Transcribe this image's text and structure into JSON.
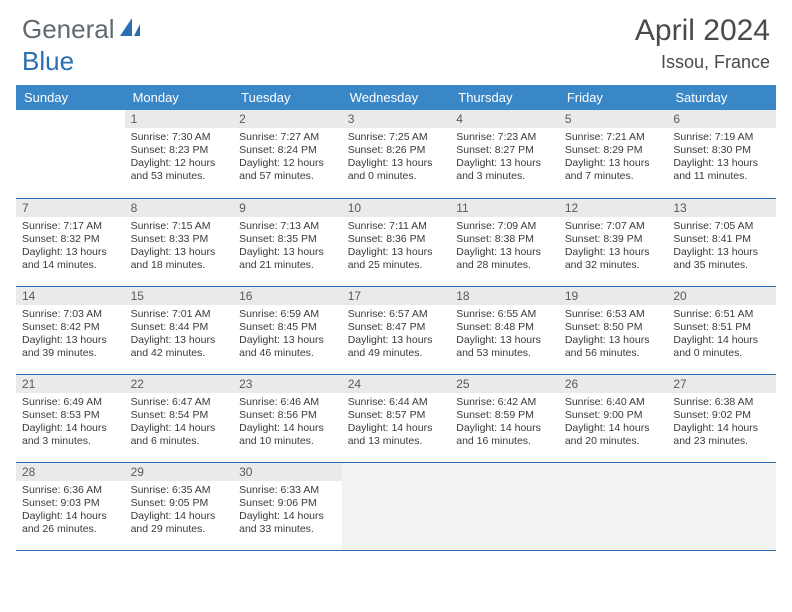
{
  "brand": {
    "part1": "General",
    "part2": "Blue"
  },
  "title": "April 2024",
  "location": "Issou, France",
  "colors": {
    "header_bg": "#3a87c8",
    "rule": "#2a6fb0",
    "daynum_bg": "#e9eaeb",
    "empty_bg": "#f3f3f3",
    "text": "#3a3a3a",
    "brand_gray": "#5f6a72",
    "brand_blue": "#2a6fb0",
    "page_bg": "#ffffff"
  },
  "day_headers": [
    "Sunday",
    "Monday",
    "Tuesday",
    "Wednesday",
    "Thursday",
    "Friday",
    "Saturday"
  ],
  "weeks": [
    [
      {
        "blank": true
      },
      {
        "n": "1",
        "sunrise": "7:30 AM",
        "sunset": "8:23 PM",
        "dl1": "Daylight: 12 hours",
        "dl2": "and 53 minutes."
      },
      {
        "n": "2",
        "sunrise": "7:27 AM",
        "sunset": "8:24 PM",
        "dl1": "Daylight: 12 hours",
        "dl2": "and 57 minutes."
      },
      {
        "n": "3",
        "sunrise": "7:25 AM",
        "sunset": "8:26 PM",
        "dl1": "Daylight: 13 hours",
        "dl2": "and 0 minutes."
      },
      {
        "n": "4",
        "sunrise": "7:23 AM",
        "sunset": "8:27 PM",
        "dl1": "Daylight: 13 hours",
        "dl2": "and 3 minutes."
      },
      {
        "n": "5",
        "sunrise": "7:21 AM",
        "sunset": "8:29 PM",
        "dl1": "Daylight: 13 hours",
        "dl2": "and 7 minutes."
      },
      {
        "n": "6",
        "sunrise": "7:19 AM",
        "sunset": "8:30 PM",
        "dl1": "Daylight: 13 hours",
        "dl2": "and 11 minutes."
      }
    ],
    [
      {
        "n": "7",
        "sunrise": "7:17 AM",
        "sunset": "8:32 PM",
        "dl1": "Daylight: 13 hours",
        "dl2": "and 14 minutes."
      },
      {
        "n": "8",
        "sunrise": "7:15 AM",
        "sunset": "8:33 PM",
        "dl1": "Daylight: 13 hours",
        "dl2": "and 18 minutes."
      },
      {
        "n": "9",
        "sunrise": "7:13 AM",
        "sunset": "8:35 PM",
        "dl1": "Daylight: 13 hours",
        "dl2": "and 21 minutes."
      },
      {
        "n": "10",
        "sunrise": "7:11 AM",
        "sunset": "8:36 PM",
        "dl1": "Daylight: 13 hours",
        "dl2": "and 25 minutes."
      },
      {
        "n": "11",
        "sunrise": "7:09 AM",
        "sunset": "8:38 PM",
        "dl1": "Daylight: 13 hours",
        "dl2": "and 28 minutes."
      },
      {
        "n": "12",
        "sunrise": "7:07 AM",
        "sunset": "8:39 PM",
        "dl1": "Daylight: 13 hours",
        "dl2": "and 32 minutes."
      },
      {
        "n": "13",
        "sunrise": "7:05 AM",
        "sunset": "8:41 PM",
        "dl1": "Daylight: 13 hours",
        "dl2": "and 35 minutes."
      }
    ],
    [
      {
        "n": "14",
        "sunrise": "7:03 AM",
        "sunset": "8:42 PM",
        "dl1": "Daylight: 13 hours",
        "dl2": "and 39 minutes."
      },
      {
        "n": "15",
        "sunrise": "7:01 AM",
        "sunset": "8:44 PM",
        "dl1": "Daylight: 13 hours",
        "dl2": "and 42 minutes."
      },
      {
        "n": "16",
        "sunrise": "6:59 AM",
        "sunset": "8:45 PM",
        "dl1": "Daylight: 13 hours",
        "dl2": "and 46 minutes."
      },
      {
        "n": "17",
        "sunrise": "6:57 AM",
        "sunset": "8:47 PM",
        "dl1": "Daylight: 13 hours",
        "dl2": "and 49 minutes."
      },
      {
        "n": "18",
        "sunrise": "6:55 AM",
        "sunset": "8:48 PM",
        "dl1": "Daylight: 13 hours",
        "dl2": "and 53 minutes."
      },
      {
        "n": "19",
        "sunrise": "6:53 AM",
        "sunset": "8:50 PM",
        "dl1": "Daylight: 13 hours",
        "dl2": "and 56 minutes."
      },
      {
        "n": "20",
        "sunrise": "6:51 AM",
        "sunset": "8:51 PM",
        "dl1": "Daylight: 14 hours",
        "dl2": "and 0 minutes."
      }
    ],
    [
      {
        "n": "21",
        "sunrise": "6:49 AM",
        "sunset": "8:53 PM",
        "dl1": "Daylight: 14 hours",
        "dl2": "and 3 minutes."
      },
      {
        "n": "22",
        "sunrise": "6:47 AM",
        "sunset": "8:54 PM",
        "dl1": "Daylight: 14 hours",
        "dl2": "and 6 minutes."
      },
      {
        "n": "23",
        "sunrise": "6:46 AM",
        "sunset": "8:56 PM",
        "dl1": "Daylight: 14 hours",
        "dl2": "and 10 minutes."
      },
      {
        "n": "24",
        "sunrise": "6:44 AM",
        "sunset": "8:57 PM",
        "dl1": "Daylight: 14 hours",
        "dl2": "and 13 minutes."
      },
      {
        "n": "25",
        "sunrise": "6:42 AM",
        "sunset": "8:59 PM",
        "dl1": "Daylight: 14 hours",
        "dl2": "and 16 minutes."
      },
      {
        "n": "26",
        "sunrise": "6:40 AM",
        "sunset": "9:00 PM",
        "dl1": "Daylight: 14 hours",
        "dl2": "and 20 minutes."
      },
      {
        "n": "27",
        "sunrise": "6:38 AM",
        "sunset": "9:02 PM",
        "dl1": "Daylight: 14 hours",
        "dl2": "and 23 minutes."
      }
    ],
    [
      {
        "n": "28",
        "sunrise": "6:36 AM",
        "sunset": "9:03 PM",
        "dl1": "Daylight: 14 hours",
        "dl2": "and 26 minutes."
      },
      {
        "n": "29",
        "sunrise": "6:35 AM",
        "sunset": "9:05 PM",
        "dl1": "Daylight: 14 hours",
        "dl2": "and 29 minutes."
      },
      {
        "n": "30",
        "sunrise": "6:33 AM",
        "sunset": "9:06 PM",
        "dl1": "Daylight: 14 hours",
        "dl2": "and 33 minutes."
      },
      {
        "trailing": true
      },
      {
        "trailing": true
      },
      {
        "trailing": true
      },
      {
        "trailing": true
      }
    ]
  ],
  "labels": {
    "sunrise_prefix": "Sunrise: ",
    "sunset_prefix": "Sunset: "
  }
}
